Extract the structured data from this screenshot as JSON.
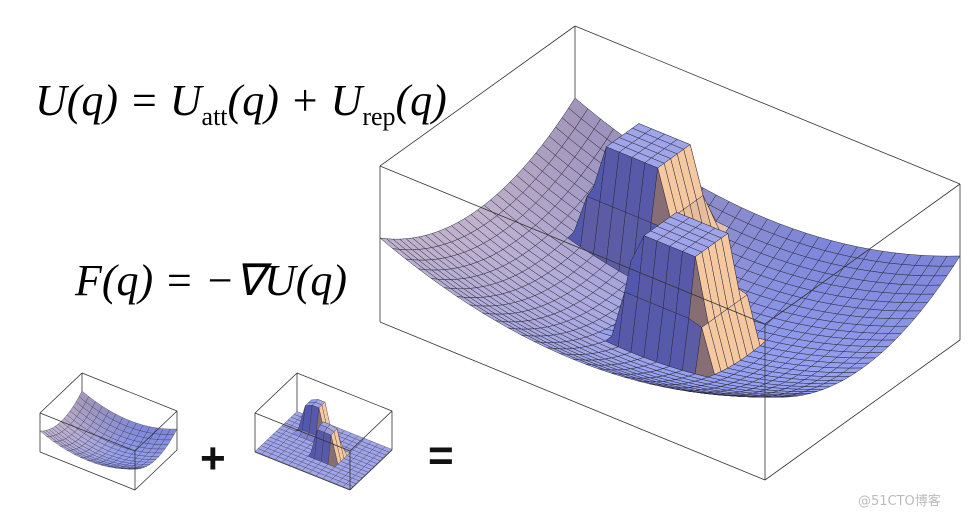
{
  "equations": [
    {
      "parts": [
        "U(q) = U",
        "att",
        "(q) + U",
        "rep",
        "(q)"
      ]
    },
    {
      "parts": [
        "F(q) = −∇U(q)"
      ]
    }
  ],
  "operators": [
    "+",
    "="
  ],
  "watermark": "@51CTO博客"
}
